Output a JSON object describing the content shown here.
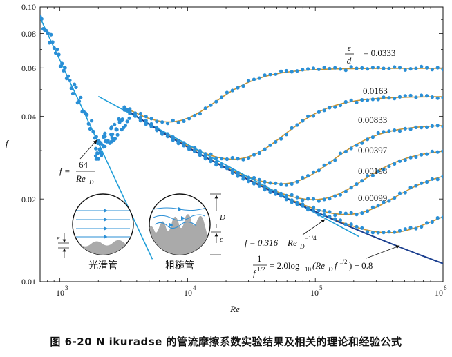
{
  "caption": "图 6-20 N ikuradse 的管流摩擦系数实验结果及相关的理论和经验公式",
  "colors": {
    "points": "#2a8fd6",
    "fit": "#c9922e",
    "laminar": "#1f9ed8",
    "blasius": "#1f9ed8",
    "colebrook": "#1b3f8f",
    "axis": "#111111"
  },
  "chart_data": {
    "type": "scatter",
    "xlabel": "Re",
    "ylabel": "f",
    "xscale": "log",
    "yscale": "log",
    "xlim": [
      700,
      1000000
    ],
    "ylim": [
      0.01,
      0.1
    ],
    "x_tick_labels": [
      "10",
      "10",
      "10",
      "10"
    ],
    "x_tick_exps": [
      "3",
      "4",
      "5",
      "6"
    ],
    "y_tick_labels": [
      "0.01",
      "0.02",
      "0.04",
      "0.06",
      "0.08",
      "0.10"
    ],
    "x_ticks": [
      1000,
      10000,
      100000,
      1000000
    ],
    "y_ticks": [
      0.01,
      0.02,
      0.04,
      0.06,
      0.08,
      0.1
    ],
    "series": [
      {
        "name": "0.0333",
        "plateau": 0.0598,
        "rise": 15000
      },
      {
        "name": "0.0163",
        "plateau": 0.0472,
        "rise": 55000
      },
      {
        "name": "0.00833",
        "plateau": 0.0373,
        "rise": 130000
      },
      {
        "name": "0.00397",
        "plateau": 0.0305,
        "rise": 220000
      },
      {
        "name": "0.00198",
        "plateau": 0.0257,
        "rise": 380000
      },
      {
        "name": "0.00099",
        "plateau": 0.0198,
        "rise": 700000
      }
    ],
    "curves": [
      {
        "name": "laminar",
        "formula": "f = 64/Re_D",
        "x": [
          700,
          5000
        ]
      },
      {
        "name": "blasius",
        "formula": "f = 0.316 Re_D^-1/4",
        "x": [
          2000,
          200000
        ]
      },
      {
        "name": "colebrook",
        "formula": "1/f^1/2 = 2.0 log10(Re_D f^1/2) - 0.8",
        "x": [
          3000,
          1000000
        ]
      }
    ],
    "annotations": {
      "eps_over_d_num": "ε",
      "eps_over_d_den": "d",
      "eps_over_d_eq": "= 0.0333",
      "laminar_lhs": "f =",
      "laminar_num": "64",
      "laminar_den": "Re",
      "laminar_den_sub": "D",
      "blasius_text": "f = 0.316",
      "blasius_re": "Re",
      "blasius_sub": "D",
      "blasius_exp": "−1/4",
      "colebrook_num": "1",
      "colebrook_den": "f",
      "colebrook_den_exp": "1/2",
      "colebrook_rhs": "= 2.0log",
      "colebrook_log_sub": "10",
      "colebrook_paren": "(Re",
      "colebrook_paren_sub": "D",
      "colebrook_paren_f": "f",
      "colebrook_paren_exp": "1/2",
      "colebrook_tail": ") − 0.8"
    }
  },
  "insets": {
    "smooth_label": "光滑管",
    "rough_label": "粗糙管",
    "eps_symbol": "ε",
    "D_symbol": "D"
  }
}
